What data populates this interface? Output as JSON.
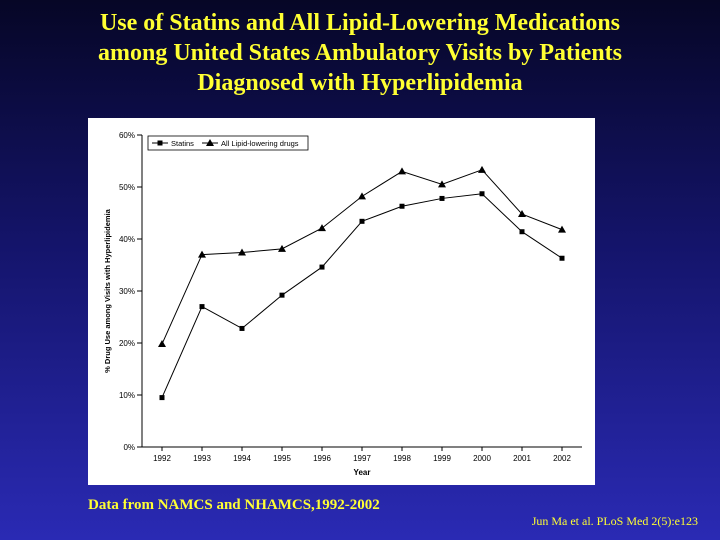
{
  "slide": {
    "title_lines": [
      "Use of Statins and All Lipid-Lowering Medications",
      "among United States Ambulatory Visits by Patients",
      "Diagnosed with Hyperlipidemia"
    ],
    "source_note": "Data from NAMCS and NHAMCS,1992-2002",
    "citation": "Jun Ma et al. PLoS Med 2(5):e123",
    "title_color": "#ffff33"
  },
  "chart_data": {
    "type": "line",
    "title": "",
    "xlabel": "Year",
    "ylabel": "% Drug Use among Visits with Hyperlipidemia",
    "categories": [
      "1992",
      "1993",
      "1994",
      "1995",
      "1996",
      "1997",
      "1998",
      "1999",
      "2000",
      "2001",
      "2002"
    ],
    "y_ticks": [
      "0%",
      "10%",
      "20%",
      "30%",
      "40%",
      "50%",
      "60%"
    ],
    "ylim": [
      0,
      60
    ],
    "grid": false,
    "legend_position": "top-left",
    "series": [
      {
        "name": "Statins",
        "marker": "square",
        "values": [
          9.5,
          27.0,
          22.8,
          29.2,
          34.6,
          43.4,
          46.3,
          47.8,
          48.7,
          41.4,
          36.3
        ]
      },
      {
        "name": "All Lipid-lowering drugs",
        "marker": "triangle",
        "values": [
          19.8,
          37.0,
          37.4,
          38.1,
          42.1,
          48.2,
          53.0,
          50.5,
          53.3,
          44.8,
          41.8
        ]
      }
    ]
  }
}
